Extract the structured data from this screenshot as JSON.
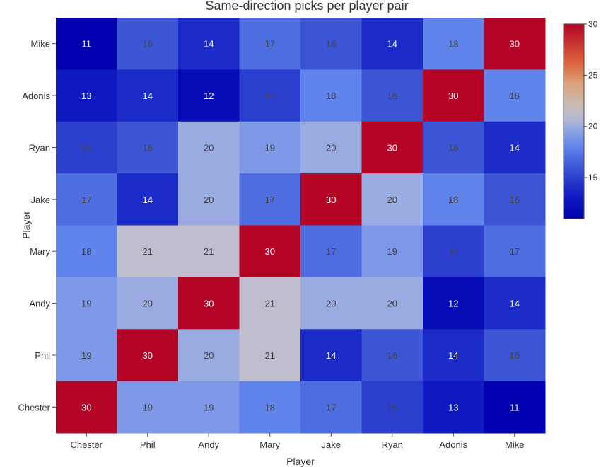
{
  "chart_data": {
    "type": "heatmap",
    "title": "Same-direction picks per player pair",
    "xlabel": "Player",
    "ylabel": "Player",
    "x_categories": [
      "Chester",
      "Phil",
      "Andy",
      "Mary",
      "Jake",
      "Ryan",
      "Adonis",
      "Mike"
    ],
    "y_categories_top_to_bottom": [
      "Mike",
      "Adonis",
      "Ryan",
      "Jake",
      "Mary",
      "Andy",
      "Phil",
      "Chester"
    ],
    "values": [
      [
        11,
        16,
        14,
        17,
        16,
        14,
        18,
        30
      ],
      [
        13,
        14,
        12,
        15,
        18,
        16,
        30,
        18
      ],
      [
        15,
        16,
        20,
        19,
        20,
        30,
        16,
        14
      ],
      [
        17,
        14,
        20,
        17,
        30,
        20,
        18,
        16
      ],
      [
        18,
        21,
        21,
        30,
        17,
        19,
        15,
        17
      ],
      [
        19,
        20,
        30,
        21,
        20,
        20,
        12,
        14
      ],
      [
        19,
        30,
        20,
        21,
        14,
        16,
        14,
        16
      ],
      [
        30,
        19,
        19,
        18,
        17,
        15,
        13,
        11
      ]
    ],
    "zmin": 11,
    "zmax": 30,
    "colorscale": "coolwarm",
    "colorbar": {
      "ticks": [
        15,
        20,
        25,
        30
      ]
    }
  }
}
